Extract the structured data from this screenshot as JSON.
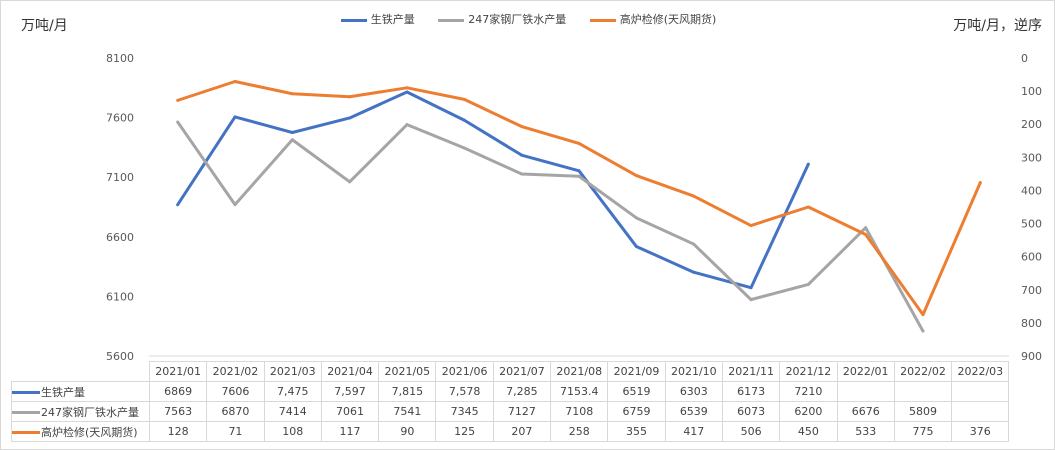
{
  "chart_data": {
    "type": "line",
    "left_axis_unit": "万吨/月",
    "right_axis_unit": "万吨/月，逆序",
    "categories": [
      "2021/01",
      "2021/02",
      "2021/03",
      "2021/04",
      "2021/05",
      "2021/06",
      "2021/07",
      "2021/08",
      "2021/09",
      "2021/10",
      "2021/11",
      "2021/12",
      "2022/01",
      "2022/02",
      "2022/03"
    ],
    "left_ylim": [
      5600,
      8100
    ],
    "left_ticks": [
      "8100",
      "7600",
      "7100",
      "6600",
      "6100",
      "5600"
    ],
    "right_ylim": [
      0,
      900
    ],
    "right_reversed": true,
    "right_ticks": [
      "0",
      "100",
      "200",
      "300",
      "400",
      "500",
      "600",
      "700",
      "800",
      "900"
    ],
    "legend_position": "top",
    "grid": false,
    "series": [
      {
        "name": "生铁产量",
        "axis": "left",
        "color": "#4472c4",
        "values": [
          6869,
          7606,
          7475,
          7597,
          7815,
          7578,
          7285,
          7153.4,
          6519,
          6303,
          6173,
          7210,
          null,
          null,
          null
        ],
        "labels": [
          "6869",
          "7606",
          "7,475",
          "7,597",
          "7,815",
          "7,578",
          "7,285",
          "7153.4",
          "6519",
          "6303",
          "6173",
          "7210",
          "",
          "",
          ""
        ]
      },
      {
        "name": "247家钢厂铁水产量",
        "axis": "left",
        "color": "#a5a5a5",
        "values": [
          7563,
          6870,
          7414,
          7061,
          7541,
          7345,
          7127,
          7108,
          6759,
          6539,
          6073,
          6200,
          6676,
          5809,
          null
        ],
        "labels": [
          "7563",
          "6870",
          "7414",
          "7061",
          "7541",
          "7345",
          "7127",
          "7108",
          "6759",
          "6539",
          "6073",
          "6200",
          "6676",
          "5809",
          ""
        ]
      },
      {
        "name": "高炉检修(天风期货)",
        "axis": "right",
        "color": "#ed7d31",
        "values": [
          128,
          71,
          108,
          117,
          90,
          125,
          207,
          258,
          355,
          417,
          506,
          450,
          533,
          775,
          376
        ],
        "labels": [
          "128",
          "71",
          "108",
          "117",
          "90",
          "125",
          "207",
          "258",
          "355",
          "417",
          "506",
          "450",
          "533",
          "775",
          "376"
        ]
      }
    ]
  }
}
